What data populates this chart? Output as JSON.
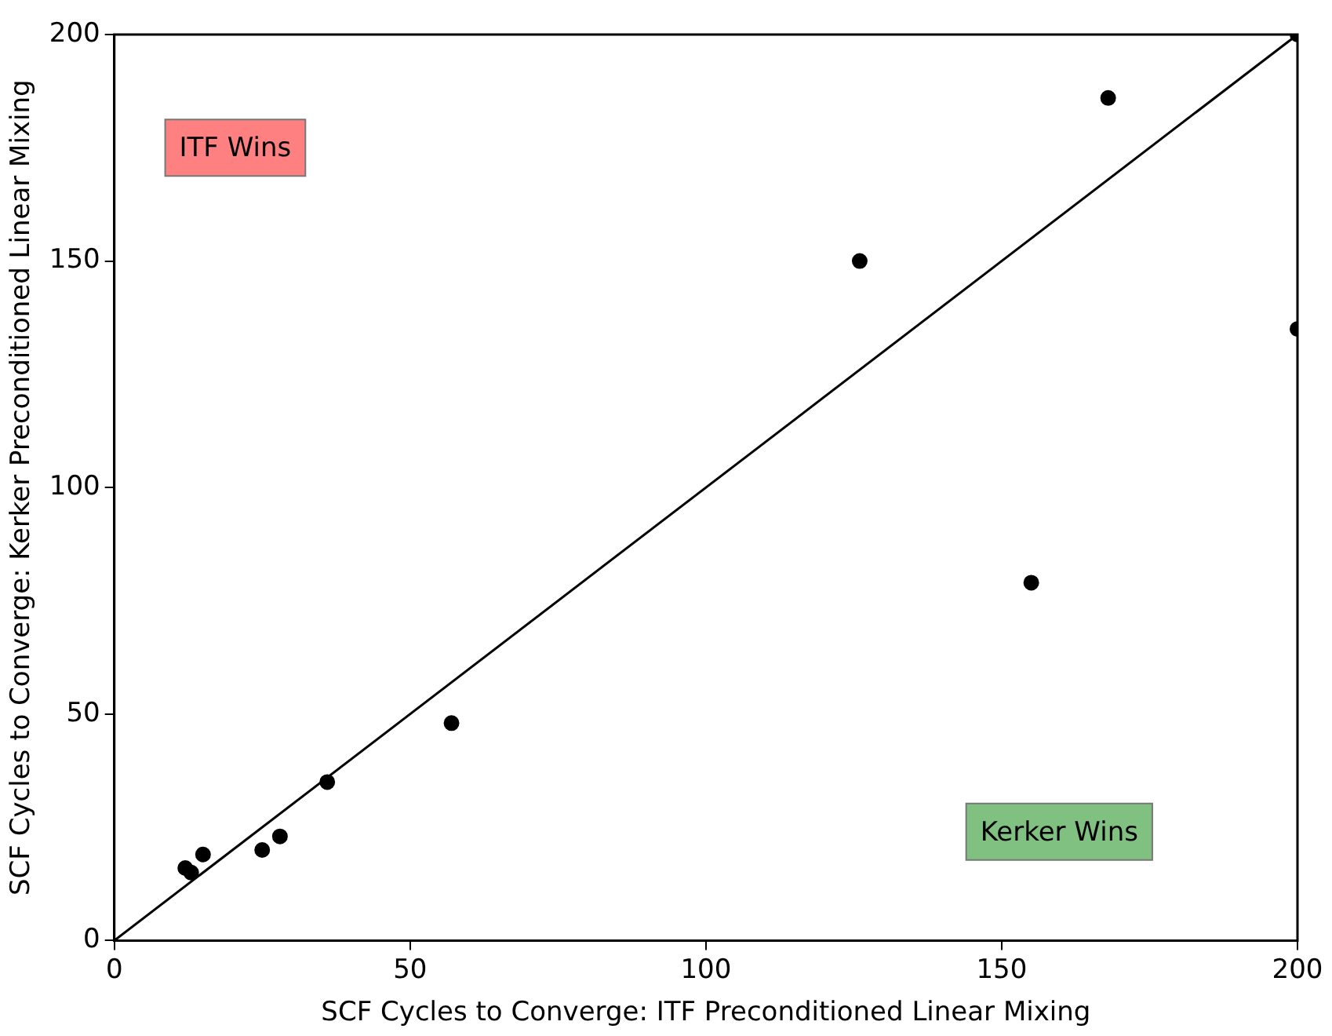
{
  "chart_data": {
    "type": "scatter",
    "xlabel": "SCF Cycles to Converge: ITF Preconditioned Linear Mixing",
    "ylabel": "SCF Cycles to Converge: Kerker Preconditioned Linear Mixing",
    "annotations": [
      "ITF Wins",
      "Kerker Wins"
    ],
    "series": [
      {
        "color": "#000000",
        "x": [
          12,
          13,
          15,
          25,
          28,
          36,
          57,
          126,
          155,
          168,
          200,
          200
        ],
        "values": [
          16,
          15,
          19,
          20,
          23,
          35,
          48,
          150,
          79,
          186,
          200,
          135
        ]
      },
      {
        "type": "line",
        "marker": "none",
        "color": "#000000",
        "x": [
          0,
          200
        ],
        "values": [
          0,
          200
        ]
      }
    ],
    "xlim": [
      0,
      200
    ],
    "ylim": [
      0,
      200
    ],
    "xticks": [
      0,
      50,
      100,
      150,
      200
    ],
    "yticks": [
      0,
      50,
      100,
      150,
      200
    ],
    "marker": "circle",
    "grid": false,
    "legend": false
  }
}
